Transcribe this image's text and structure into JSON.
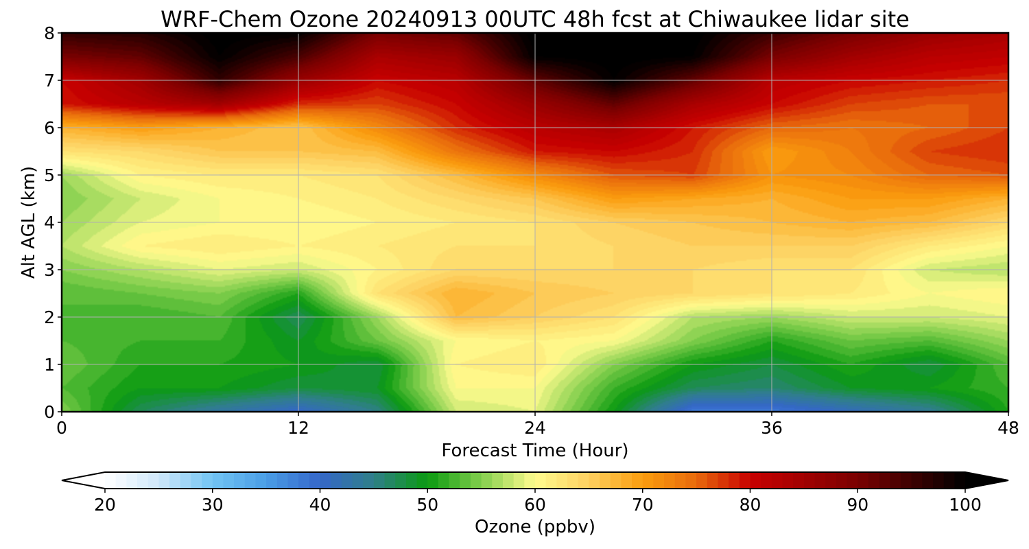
{
  "chart_data": {
    "type": "heatmap",
    "title": "WRF-Chem Ozone  20240913 00UTC 48h fcst at Chiwaukee lidar site",
    "xlabel": "Forecast Time (Hour)",
    "ylabel": "Alt AGL (km)",
    "xlim": [
      0,
      48
    ],
    "ylim": [
      0,
      8
    ],
    "x_ticks": [
      0,
      12,
      24,
      36,
      48
    ],
    "x_tick_labels": [
      "0",
      "12",
      "24",
      "36",
      "48"
    ],
    "y_ticks": [
      0,
      1,
      2,
      3,
      4,
      5,
      6,
      7,
      8
    ],
    "y_tick_labels": [
      "0",
      "1",
      "2",
      "3",
      "4",
      "5",
      "6",
      "7",
      "8"
    ],
    "grid": true,
    "colorbar": {
      "label": "Ozone  (ppbv)",
      "min": 20,
      "max": 100,
      "extend": "both",
      "ticks": [
        20,
        30,
        40,
        50,
        60,
        70,
        80,
        90,
        100
      ],
      "tick_labels": [
        "20",
        "30",
        "40",
        "50",
        "60",
        "70",
        "80",
        "90",
        "100"
      ],
      "anchors": [
        [
          20,
          "#ffffff"
        ],
        [
          25,
          "#cfe8fa"
        ],
        [
          30,
          "#72c4f3"
        ],
        [
          35,
          "#4a9ee6"
        ],
        [
          40,
          "#3566c9"
        ],
        [
          45,
          "#2f7f88"
        ],
        [
          50,
          "#0a9a10"
        ],
        [
          55,
          "#83cf4d"
        ],
        [
          60,
          "#fffb8e"
        ],
        [
          65,
          "#fdd060"
        ],
        [
          70,
          "#fb9d0e"
        ],
        [
          75,
          "#e86a0c"
        ],
        [
          80,
          "#c80000"
        ],
        [
          90,
          "#7a0000"
        ],
        [
          100,
          "#000000"
        ]
      ]
    },
    "x": [
      0,
      4,
      8,
      12,
      16,
      20,
      24,
      28,
      32,
      36,
      40,
      44,
      48
    ],
    "y": [
      0,
      0.5,
      1,
      1.5,
      2,
      2.5,
      3,
      3.5,
      4,
      4.5,
      5,
      5.5,
      6,
      6.5,
      7,
      7.5,
      8
    ],
    "z": [
      [
        55,
        47,
        43,
        40,
        45,
        58,
        59,
        50,
        38,
        38,
        41,
        44,
        51
      ],
      [
        53,
        50,
        50,
        48,
        49,
        60,
        60,
        52,
        47,
        46,
        49,
        50,
        52
      ],
      [
        54,
        51,
        51,
        50,
        48,
        61,
        62,
        55,
        50,
        48,
        51,
        48,
        53
      ],
      [
        53,
        52,
        52,
        49,
        54,
        60,
        61,
        60,
        55,
        51,
        54,
        53,
        56
      ],
      [
        53,
        52,
        53,
        47,
        56,
        67,
        65,
        63,
        57,
        56,
        58,
        58,
        59
      ],
      [
        53,
        54,
        55,
        51,
        63,
        68,
        66,
        65,
        64,
        63,
        62,
        60,
        61
      ],
      [
        55,
        57,
        59,
        58,
        61,
        64,
        64,
        64,
        64,
        63,
        63,
        58,
        57
      ],
      [
        57,
        61,
        62,
        61,
        62,
        63,
        63,
        64,
        65,
        65,
        65,
        62,
        60
      ],
      [
        56,
        59,
        60,
        60,
        61,
        62,
        63,
        65,
        66,
        67,
        68,
        67,
        64
      ],
      [
        55,
        58,
        60,
        61,
        62,
        64,
        66,
        70,
        69,
        68,
        70,
        70,
        68
      ],
      [
        56,
        61,
        62,
        62,
        63,
        67,
        72,
        76,
        77,
        71,
        72,
        75,
        76
      ],
      [
        63,
        64,
        66,
        66,
        67,
        74,
        79,
        80,
        78,
        70,
        73,
        77,
        78
      ],
      [
        68,
        70,
        68,
        66,
        72,
        78,
        82,
        84,
        79,
        75,
        74,
        75,
        77
      ],
      [
        79,
        82,
        85,
        78,
        77,
        80,
        86,
        92,
        84,
        80,
        77,
        76,
        76
      ],
      [
        80,
        85,
        96,
        86,
        80,
        82,
        92,
        100,
        92,
        82,
        80,
        79,
        78
      ],
      [
        90,
        92,
        100,
        94,
        84,
        86,
        100,
        101,
        100,
        90,
        85,
        82,
        81
      ],
      [
        96,
        97,
        101,
        100,
        90,
        92,
        101,
        101,
        101,
        95,
        90,
        86,
        84
      ]
    ]
  }
}
